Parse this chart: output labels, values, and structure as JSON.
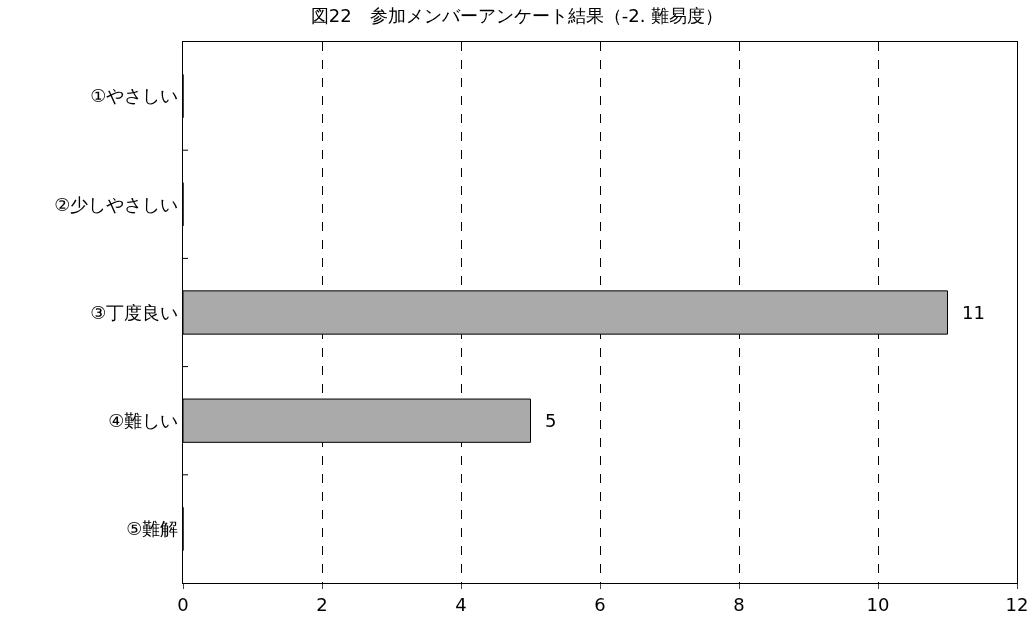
{
  "chart_data": {
    "type": "bar",
    "orientation": "horizontal",
    "title": "図22　参加メンバーアンケート結果（-2. 難易度）",
    "categories": [
      "①やさしい",
      "②少しやさしい",
      "③丁度良い",
      "④難しい",
      "⑤難解"
    ],
    "values": [
      0,
      0,
      11,
      5,
      0
    ],
    "value_labels": [
      null,
      null,
      "11",
      "5",
      null
    ],
    "color": "#aaaaaa",
    "xlim": [
      0,
      12
    ],
    "xticks": [
      0,
      2,
      4,
      6,
      8,
      10,
      12
    ],
    "grid": "x"
  }
}
